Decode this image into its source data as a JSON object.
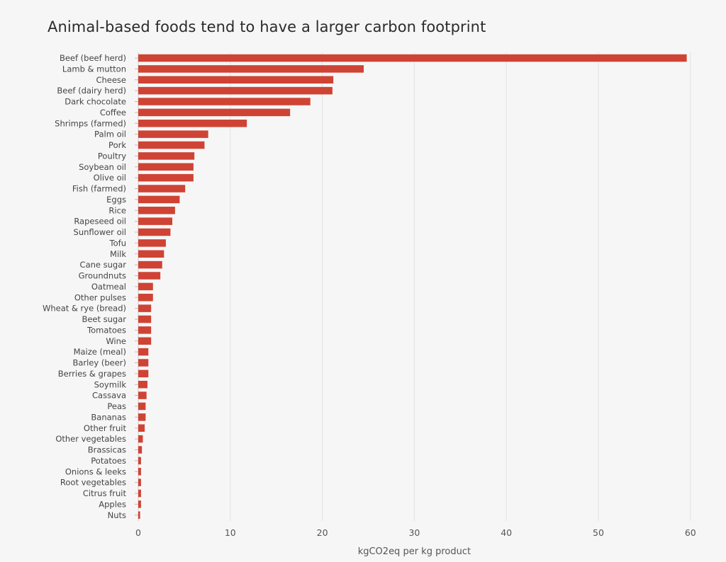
{
  "chart_data": {
    "type": "bar",
    "orientation": "horizontal",
    "title": "Animal-based foods tend to have a larger carbon footprint",
    "xlabel": "kgCO2eq per kg product",
    "ylabel": "",
    "xlim": [
      0,
      61
    ],
    "xticks": [
      0,
      10,
      20,
      30,
      40,
      50,
      60
    ],
    "grid": true,
    "bar_color": "#cf4334",
    "categories": [
      "Beef (beef herd)",
      "Lamb & mutton",
      "Cheese",
      "Beef (dairy herd)",
      "Dark chocolate",
      "Coffee",
      "Shrimps (farmed)",
      "Palm oil",
      "Pork",
      "Poultry",
      "Soybean oil",
      "Olive oil",
      "Fish (farmed)",
      "Eggs",
      "Rice",
      "Rapeseed oil",
      "Sunflower oil",
      "Tofu",
      "Milk",
      "Cane sugar",
      "Groundnuts",
      "Oatmeal",
      "Other pulses",
      "Wheat & rye (bread)",
      "Beet sugar",
      "Tomatoes",
      "Wine",
      "Maize (meal)",
      "Barley (beer)",
      "Berries & grapes",
      "Soymilk",
      "Cassava",
      "Peas",
      "Bananas",
      "Other fruit",
      "Other vegetables",
      "Brassicas",
      "Potatoes",
      "Onions & leeks",
      "Root vegetables",
      "Citrus fruit",
      "Apples",
      "Nuts"
    ],
    "values": [
      59.6,
      24.5,
      21.2,
      21.1,
      18.7,
      16.5,
      11.8,
      7.6,
      7.2,
      6.1,
      6.0,
      6.0,
      5.1,
      4.5,
      4.0,
      3.7,
      3.5,
      3.0,
      2.8,
      2.6,
      2.4,
      1.6,
      1.6,
      1.4,
      1.4,
      1.4,
      1.4,
      1.1,
      1.1,
      1.1,
      1.0,
      0.9,
      0.8,
      0.8,
      0.7,
      0.5,
      0.4,
      0.3,
      0.3,
      0.3,
      0.3,
      0.3,
      0.2
    ]
  }
}
